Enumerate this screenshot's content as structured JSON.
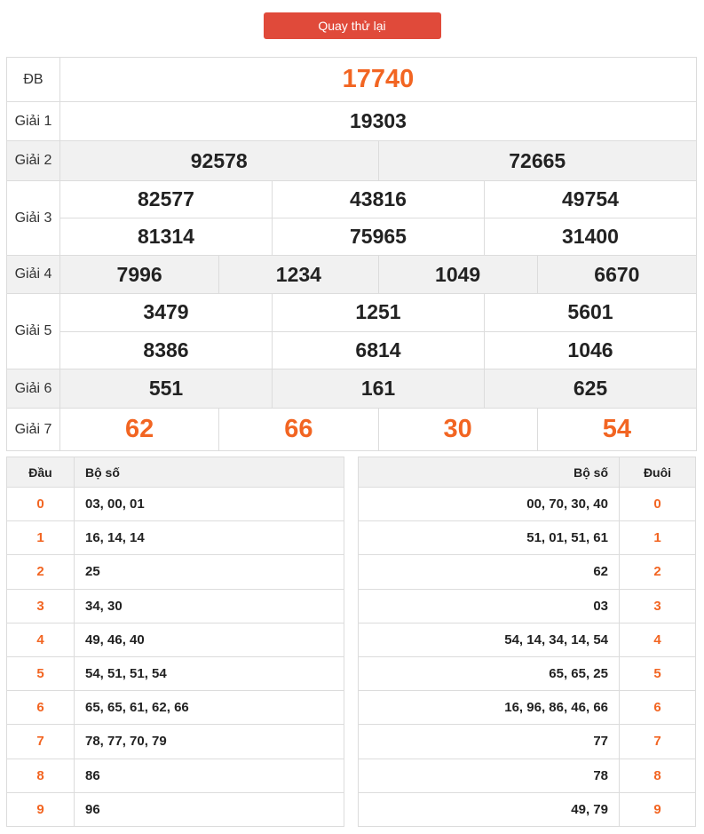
{
  "retry_button": "Quay thử lại",
  "results": {
    "special": {
      "label": "ĐB",
      "numbers": [
        "17740"
      ]
    },
    "g1": {
      "label": "Giải 1",
      "numbers": [
        "19303"
      ]
    },
    "g2": {
      "label": "Giải 2",
      "numbers": [
        "92578",
        "72665"
      ]
    },
    "g3": {
      "label": "Giải 3",
      "numbers": [
        "82577",
        "43816",
        "49754",
        "81314",
        "75965",
        "31400"
      ]
    },
    "g4": {
      "label": "Giải 4",
      "numbers": [
        "7996",
        "1234",
        "1049",
        "6670"
      ]
    },
    "g5": {
      "label": "Giải 5",
      "numbers": [
        "3479",
        "1251",
        "5601",
        "8386",
        "6814",
        "1046"
      ]
    },
    "g6": {
      "label": "Giải 6",
      "numbers": [
        "551",
        "161",
        "625"
      ]
    },
    "g7": {
      "label": "Giải 7",
      "numbers": [
        "62",
        "66",
        "30",
        "54"
      ]
    }
  },
  "loto_head": {
    "header_key": "Đầu",
    "header_val": "Bộ số",
    "rows": [
      {
        "key": "0",
        "val": "03, 00, 01"
      },
      {
        "key": "1",
        "val": "16, 14, 14"
      },
      {
        "key": "2",
        "val": "25"
      },
      {
        "key": "3",
        "val": "34, 30"
      },
      {
        "key": "4",
        "val": "49, 46, 40"
      },
      {
        "key": "5",
        "val": "54, 51, 51, 54"
      },
      {
        "key": "6",
        "val": "65, 65, 61, 62, 66"
      },
      {
        "key": "7",
        "val": "78, 77, 70, 79"
      },
      {
        "key": "8",
        "val": "86"
      },
      {
        "key": "9",
        "val": "96"
      }
    ]
  },
  "loto_tail": {
    "header_val": "Bộ số",
    "header_key": "Đuôi",
    "rows": [
      {
        "key": "0",
        "val": "00, 70, 30, 40"
      },
      {
        "key": "1",
        "val": "51, 01, 51, 61"
      },
      {
        "key": "2",
        "val": "62"
      },
      {
        "key": "3",
        "val": "03"
      },
      {
        "key": "4",
        "val": "54, 14, 34, 14, 54"
      },
      {
        "key": "5",
        "val": "65, 65, 25"
      },
      {
        "key": "6",
        "val": "16, 96, 86, 46, 66"
      },
      {
        "key": "7",
        "val": "77"
      },
      {
        "key": "8",
        "val": "78"
      },
      {
        "key": "9",
        "val": "49, 79"
      }
    ]
  }
}
